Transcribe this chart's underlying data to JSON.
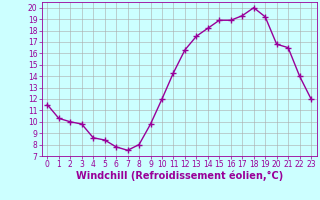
{
  "x": [
    0,
    1,
    2,
    3,
    4,
    5,
    6,
    7,
    8,
    9,
    10,
    11,
    12,
    13,
    14,
    15,
    16,
    17,
    18,
    19,
    20,
    21,
    22,
    23
  ],
  "y": [
    11.5,
    10.3,
    10.0,
    9.8,
    8.6,
    8.4,
    7.8,
    7.5,
    8.0,
    9.8,
    12.0,
    14.3,
    16.3,
    17.5,
    18.2,
    18.9,
    18.9,
    19.3,
    20.0,
    19.2,
    16.8,
    16.5,
    14.0,
    12.0
  ],
  "line_color": "#990099",
  "marker": "+",
  "markersize": 4,
  "linewidth": 1.0,
  "xlabel": "Windchill (Refroidissement éolien,°C)",
  "xlabel_fontsize": 7,
  "bg_color": "#ccffff",
  "grid_color": "#aaaaaa",
  "ylim": [
    7,
    20.5
  ],
  "xlim": [
    -0.5,
    23.5
  ],
  "yticks": [
    7,
    8,
    9,
    10,
    11,
    12,
    13,
    14,
    15,
    16,
    17,
    18,
    19,
    20
  ],
  "xticks": [
    0,
    1,
    2,
    3,
    4,
    5,
    6,
    7,
    8,
    9,
    10,
    11,
    12,
    13,
    14,
    15,
    16,
    17,
    18,
    19,
    20,
    21,
    22,
    23
  ],
  "tick_fontsize": 5.5,
  "tick_color": "#990099",
  "axis_label_color": "#990099",
  "spine_color": "#990099"
}
